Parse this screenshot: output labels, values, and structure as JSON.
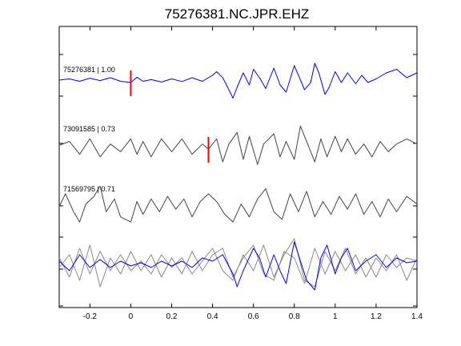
{
  "chart_data": {
    "type": "line",
    "title": "75276381.NC.JPR.EHZ",
    "xlabel": "",
    "ylabel": "",
    "xlim": [
      -0.35,
      1.4
    ],
    "x_ticks": [
      "-0.2",
      "0",
      "0.2",
      "0.4",
      "0.6",
      "0.8",
      "1",
      "1.2",
      "1.4"
    ],
    "x_tick_values": [
      -0.2,
      0,
      0.2,
      0.4,
      0.6,
      0.8,
      1.0,
      1.2,
      1.4
    ],
    "grid": false,
    "colors": {
      "reference": "#0000ff",
      "correlated": "#444444",
      "overlay": "#888888",
      "pick": "#ff0000"
    },
    "series": [
      {
        "name": "75276381 | 1.00",
        "role": "reference",
        "pick_time": 0.0,
        "x": [
          -0.35,
          -0.3,
          -0.25,
          -0.2,
          -0.15,
          -0.1,
          -0.05,
          0,
          0.03,
          0.06,
          0.1,
          0.15,
          0.2,
          0.25,
          0.3,
          0.35,
          0.4,
          0.42,
          0.45,
          0.48,
          0.5,
          0.52,
          0.55,
          0.58,
          0.6,
          0.63,
          0.66,
          0.7,
          0.73,
          0.76,
          0.8,
          0.82,
          0.85,
          0.88,
          0.9,
          0.92,
          0.95,
          0.97,
          1.0,
          1.03,
          1.06,
          1.1,
          1.13,
          1.16,
          1.2,
          1.25,
          1.3,
          1.35,
          1.4
        ],
        "y": [
          0,
          0.05,
          -0.05,
          0.08,
          -0.02,
          0.1,
          -0.05,
          -0.1,
          0.12,
          -0.05,
          0.02,
          -0.08,
          0.05,
          -0.06,
          0.1,
          -0.05,
          0.2,
          0.35,
          0.1,
          -0.4,
          -0.75,
          -0.3,
          0.3,
          -0.2,
          0.45,
          0.1,
          -0.35,
          0.5,
          -0.2,
          -0.5,
          0.6,
          0.2,
          -0.4,
          -0.1,
          0.7,
          0.3,
          -0.6,
          -0.3,
          0.35,
          -0.1,
          0.3,
          -0.15,
          0.2,
          -0.1,
          0.05,
          0.3,
          0.45,
          0.1,
          0.3
        ]
      },
      {
        "name": "73091585 | 0.73",
        "role": "correlated",
        "pick_time": 0.38,
        "x": [
          -0.35,
          -0.3,
          -0.25,
          -0.2,
          -0.15,
          -0.1,
          -0.05,
          0,
          0.03,
          0.06,
          0.1,
          0.15,
          0.2,
          0.25,
          0.3,
          0.35,
          0.38,
          0.42,
          0.45,
          0.48,
          0.52,
          0.55,
          0.58,
          0.62,
          0.65,
          0.7,
          0.73,
          0.76,
          0.8,
          0.83,
          0.86,
          0.9,
          0.93,
          0.96,
          1.0,
          1.03,
          1.06,
          1.1,
          1.14,
          1.18,
          1.22,
          1.26,
          1.3,
          1.35,
          1.4
        ],
        "y": [
          0.05,
          0.2,
          -0.3,
          0.3,
          -0.4,
          0.1,
          -0.2,
          0.3,
          -0.3,
          0.2,
          -0.4,
          0.3,
          -0.2,
          0.3,
          -0.3,
          0.1,
          -0.1,
          0.3,
          -0.6,
          0.1,
          0.55,
          -0.5,
          0.4,
          -0.7,
          0.1,
          0.5,
          -0.4,
          0.2,
          -0.5,
          0.8,
          0.2,
          -0.6,
          0.3,
          -0.4,
          0.4,
          -0.2,
          0.3,
          -0.3,
          0.1,
          -0.4,
          0.2,
          -0.2,
          0.1,
          0.3,
          0.1
        ]
      },
      {
        "name": "71569795 | 0.71",
        "role": "correlated",
        "pick_time": null,
        "x": [
          -0.35,
          -0.32,
          -0.28,
          -0.25,
          -0.22,
          -0.18,
          -0.15,
          -0.12,
          -0.08,
          -0.05,
          0,
          0.03,
          0.06,
          0.1,
          0.14,
          0.18,
          0.22,
          0.26,
          0.3,
          0.34,
          0.38,
          0.42,
          0.46,
          0.5,
          0.54,
          0.58,
          0.62,
          0.66,
          0.7,
          0.74,
          0.78,
          0.82,
          0.86,
          0.9,
          0.94,
          0.98,
          1.02,
          1.06,
          1.1,
          1.14,
          1.18,
          1.22,
          1.26,
          1.3,
          1.35,
          1.4
        ],
        "y": [
          0,
          0.5,
          -0.2,
          -0.6,
          0.1,
          0.4,
          0.8,
          -0.2,
          0.3,
          -0.4,
          -0.6,
          0.2,
          -0.3,
          0.3,
          -0.2,
          0.4,
          -0.1,
          0.3,
          -0.4,
          0.2,
          0.5,
          0.2,
          -0.3,
          -0.6,
          0.1,
          -0.4,
          0.3,
          0.7,
          -0.2,
          -0.5,
          0.5,
          -0.2,
          0.6,
          -0.4,
          0.2,
          -0.3,
          0.4,
          -0.1,
          0.5,
          -0.3,
          0.2,
          -0.4,
          0.3,
          -0.2,
          0.4,
          0.1
        ]
      },
      {
        "name": "",
        "role": "overlay",
        "pick_time": null,
        "x": [
          -0.35,
          -0.3,
          -0.25,
          -0.2,
          -0.15,
          -0.1,
          -0.05,
          0,
          0.05,
          0.1,
          0.15,
          0.2,
          0.25,
          0.3,
          0.35,
          0.4,
          0.45,
          0.5,
          0.52,
          0.55,
          0.6,
          0.63,
          0.66,
          0.7,
          0.73,
          0.76,
          0.8,
          0.83,
          0.86,
          0.9,
          0.93,
          0.96,
          1.0,
          1.03,
          1.06,
          1.1,
          1.15,
          1.2,
          1.25,
          1.3,
          1.35,
          1.4
        ],
        "y": [
          0.1,
          -0.2,
          0.3,
          -0.1,
          0.15,
          -0.1,
          0.1,
          -0.05,
          0.05,
          -0.1,
          0.1,
          -0.05,
          0.1,
          -0.1,
          0.2,
          0.1,
          0.3,
          -0.3,
          -0.7,
          -0.2,
          0.5,
          0.2,
          -0.4,
          0.3,
          -0.2,
          -0.6,
          0.7,
          0.1,
          -0.5,
          -0.8,
          0.2,
          0.6,
          -0.3,
          0.2,
          0.5,
          -0.2,
          0.1,
          0.3,
          -0.1,
          0.2,
          0.05,
          0.1
        ]
      },
      {
        "name": "",
        "role": "overlay-gray-1",
        "pick_time": null,
        "x": [
          -0.35,
          -0.3,
          -0.25,
          -0.2,
          -0.15,
          -0.1,
          -0.05,
          0,
          0.05,
          0.1,
          0.15,
          0.2,
          0.25,
          0.3,
          0.35,
          0.4,
          0.45,
          0.5,
          0.55,
          0.6,
          0.65,
          0.7,
          0.75,
          0.8,
          0.85,
          0.9,
          0.95,
          1.0,
          1.05,
          1.1,
          1.15,
          1.2,
          1.25,
          1.3,
          1.35,
          1.4
        ],
        "y": [
          0.2,
          -0.4,
          0.5,
          -0.3,
          0.4,
          -0.2,
          0.3,
          -0.2,
          0.1,
          -0.3,
          0.3,
          -0.1,
          0.2,
          -0.3,
          0.1,
          0.5,
          -0.2,
          -0.5,
          0.3,
          -0.2,
          0.6,
          -0.4,
          0.3,
          0.8,
          -0.5,
          -0.7,
          0.4,
          -0.2,
          0.5,
          -0.3,
          0.2,
          -0.4,
          0.3,
          -0.1,
          0.2,
          0.1
        ]
      },
      {
        "name": "",
        "role": "overlay-gray-2",
        "pick_time": null,
        "x": [
          -0.35,
          -0.3,
          -0.25,
          -0.2,
          -0.15,
          -0.1,
          -0.05,
          0,
          0.05,
          0.1,
          0.15,
          0.2,
          0.25,
          0.3,
          0.35,
          0.4,
          0.45,
          0.5,
          0.55,
          0.6,
          0.65,
          0.7,
          0.75,
          0.8,
          0.85,
          0.9,
          0.95,
          1.0,
          1.05,
          1.1,
          1.15,
          1.2,
          1.25,
          1.3,
          1.35,
          1.4
        ],
        "y": [
          -0.1,
          0.3,
          -0.5,
          0.6,
          -0.7,
          0.2,
          -0.3,
          0.4,
          -0.2,
          0.3,
          -0.4,
          0.2,
          -0.3,
          0.4,
          -0.2,
          0.3,
          0.5,
          -0.4,
          0.2,
          0.6,
          -0.3,
          -0.5,
          0.4,
          0.2,
          -0.6,
          0.5,
          -0.3,
          0.4,
          -0.2,
          0.3,
          -0.4,
          0.2,
          -0.2,
          0.3,
          -0.5,
          0.2
        ]
      }
    ],
    "labels_on_chart": [
      "75276381 | 1.00",
      "73091585 | 0.73",
      "71569795 | 0.71"
    ]
  }
}
